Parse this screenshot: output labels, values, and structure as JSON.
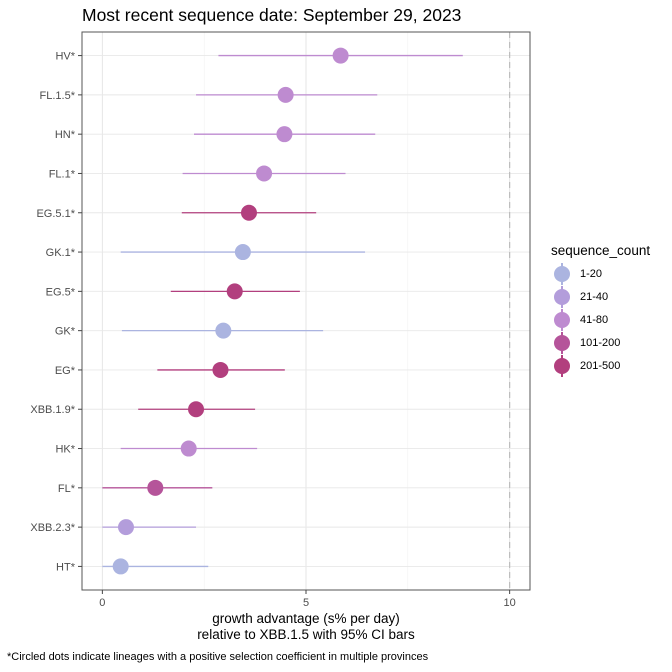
{
  "chart_data": {
    "type": "scatter",
    "title": "Most recent sequence date: September 29, 2023",
    "xlabel_line1": "growth advantage (s% per day)",
    "xlabel_line2": "relative to  XBB.1.5  with 95% CI bars",
    "caption": "*Circled dots indicate lineages with a positive selection coefficient in multiple provinces",
    "xlim": [
      -0.5,
      10.5
    ],
    "x_ticks": [
      "0",
      "5",
      "10"
    ],
    "x_tick_values": [
      0,
      5,
      10
    ],
    "reference_line_x": 10,
    "grid": true,
    "legend_position": "right",
    "legend": {
      "title": "sequence_count",
      "items": [
        {
          "label": "1-20",
          "color": "#abb4e0"
        },
        {
          "label": "21-40",
          "color": "#b39ddb"
        },
        {
          "label": "41-80",
          "color": "#be8bd0"
        },
        {
          "label": "101-200",
          "color": "#b5549a"
        },
        {
          "label": "201-500",
          "color": "#b23f7e"
        }
      ]
    },
    "points": [
      {
        "lineage": "HV*",
        "value": 5.85,
        "ci_low": 2.85,
        "ci_high": 8.85,
        "count_group": "41-80"
      },
      {
        "lineage": "FL.1.5*",
        "value": 4.5,
        "ci_low": 2.3,
        "ci_high": 6.75,
        "count_group": "41-80"
      },
      {
        "lineage": "HN*",
        "value": 4.47,
        "ci_low": 2.25,
        "ci_high": 6.7,
        "count_group": "41-80"
      },
      {
        "lineage": "FL.1*",
        "value": 3.97,
        "ci_low": 1.97,
        "ci_high": 5.97,
        "count_group": "41-80"
      },
      {
        "lineage": "EG.5.1*",
        "value": 3.6,
        "ci_low": 1.95,
        "ci_high": 5.25,
        "count_group": "201-500"
      },
      {
        "lineage": "GK.1*",
        "value": 3.45,
        "ci_low": 0.45,
        "ci_high": 6.45,
        "count_group": "1-20"
      },
      {
        "lineage": "EG.5*",
        "value": 3.25,
        "ci_low": 1.68,
        "ci_high": 4.85,
        "count_group": "201-500"
      },
      {
        "lineage": "GK*",
        "value": 2.97,
        "ci_low": 0.48,
        "ci_high": 5.42,
        "count_group": "1-20"
      },
      {
        "lineage": "EG*",
        "value": 2.9,
        "ci_low": 1.35,
        "ci_high": 4.48,
        "count_group": "201-500"
      },
      {
        "lineage": "XBB.1.9*",
        "value": 2.3,
        "ci_low": 0.88,
        "ci_high": 3.75,
        "count_group": "201-500"
      },
      {
        "lineage": "HK*",
        "value": 2.12,
        "ci_low": 0.45,
        "ci_high": 3.8,
        "count_group": "41-80"
      },
      {
        "lineage": "FL*",
        "value": 1.3,
        "ci_low": 0.0,
        "ci_high": 2.7,
        "count_group": "101-200"
      },
      {
        "lineage": "XBB.2.3*",
        "value": 0.58,
        "ci_low": 0.0,
        "ci_high": 2.3,
        "count_group": "21-40"
      },
      {
        "lineage": "HT*",
        "value": 0.45,
        "ci_low": 0.0,
        "ci_high": 2.6,
        "count_group": "1-20"
      }
    ]
  }
}
